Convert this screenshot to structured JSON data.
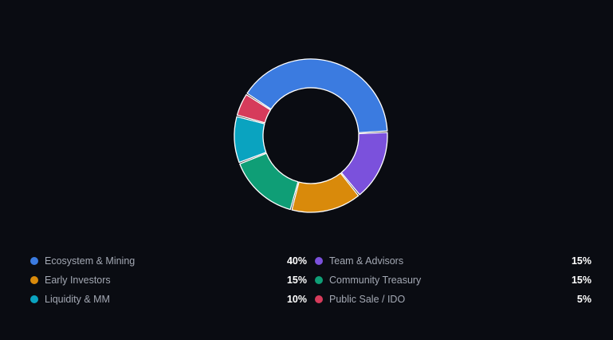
{
  "chart_data": {
    "type": "pie",
    "donut": true,
    "title": "",
    "series": [
      {
        "name": "",
        "slices": [
          {
            "label": "Ecosystem & Mining",
            "value": 40,
            "value_label": "40%",
            "color": "#3b7be0"
          },
          {
            "label": "Public Sale / IDO",
            "value": 5,
            "value_label": "5%",
            "color": "#d63b5b"
          },
          {
            "label": "Liquidity & MM",
            "value": 10,
            "value_label": "10%",
            "color": "#0aa3c0"
          },
          {
            "label": "Community Treasury",
            "value": 15,
            "value_label": "15%",
            "color": "#0f9e76"
          },
          {
            "label": "Early Investors",
            "value": 15,
            "value_label": "15%",
            "color": "#d98a0b"
          },
          {
            "label": "Team & Advisors",
            "value": 15,
            "value_label": "15%",
            "color": "#7b51dc"
          }
        ]
      }
    ],
    "legend_placement": "bottom",
    "legend": [
      {
        "label": "Ecosystem & Mining",
        "value_label": "40%",
        "color": "#3b7be0"
      },
      {
        "label": "Team & Advisors",
        "value_label": "15%",
        "color": "#7b51dc"
      },
      {
        "label": "Early Investors",
        "value_label": "15%",
        "color": "#d98a0b"
      },
      {
        "label": "Community Treasury",
        "value_label": "15%",
        "color": "#0f9e76"
      },
      {
        "label": "Liquidity & MM",
        "value_label": "10%",
        "color": "#0aa3c0"
      },
      {
        "label": "Public Sale / IDO",
        "value_label": "5%",
        "color": "#d63b5b"
      }
    ]
  },
  "theme": {
    "background": "#0a0c12"
  }
}
